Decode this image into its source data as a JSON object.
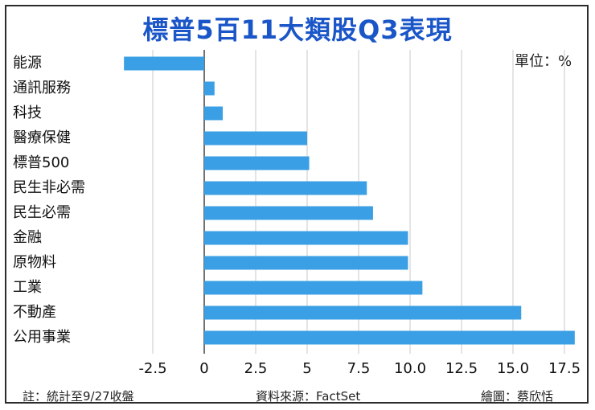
{
  "unit_label": "單位：%",
  "footer": {
    "note": "註：統計至9/27收盤",
    "source": "資料來源：FactSet",
    "credit": "繪圖：蔡欣恬"
  },
  "colors": {
    "bar": "#3a9fe4",
    "grid": "#c9c9c9",
    "title": "#1a56c8",
    "axis": "#444444"
  },
  "chart_data": {
    "type": "bar",
    "orientation": "horizontal",
    "title": "標普5百11大類股Q3表現",
    "xlabel": "",
    "ylabel": "",
    "xlim": [
      -3.9,
      18
    ],
    "grid": true,
    "categories": [
      "能源",
      "通訊服務",
      "科技",
      "醫療保健",
      "標普500",
      "民生非必需",
      "民生必需",
      "金融",
      "原物料",
      "工業",
      "不動產",
      "公用事業"
    ],
    "values": [
      -3.9,
      0.5,
      0.9,
      5.0,
      5.1,
      7.9,
      8.2,
      9.9,
      9.9,
      10.6,
      15.4,
      18.0
    ],
    "ticks": [
      -2.5,
      0,
      2.5,
      5,
      7.5,
      10.0,
      12.5,
      15.0,
      17.5
    ],
    "tick_labels": [
      "-2.5",
      "0",
      "2.5",
      "5",
      "7.5",
      "10.0",
      "12.5",
      "15.0",
      "17.5"
    ]
  }
}
